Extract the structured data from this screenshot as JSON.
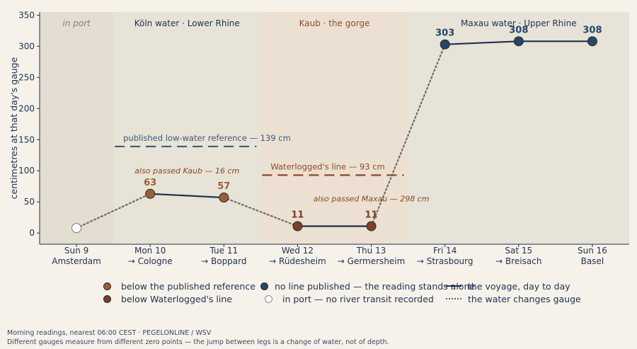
{
  "chart_data": {
    "type": "line",
    "ylabel": "centimetres at that day's gauge",
    "ylim": [
      -18,
      355
    ],
    "yticks": [
      0,
      50,
      100,
      150,
      200,
      250,
      300,
      350
    ],
    "categories": [
      {
        "day": "Sun 9",
        "place": "Amsterdam"
      },
      {
        "day": "Mon 10",
        "place": "→ Cologne"
      },
      {
        "day": "Tue 11",
        "place": "→ Boppard"
      },
      {
        "day": "Wed 12",
        "place": "→ Rüdesheim"
      },
      {
        "day": "Thu 13",
        "place": "→ Germersheim"
      },
      {
        "day": "Fri 14",
        "place": "→ Strasbourg"
      },
      {
        "day": "Sat 15",
        "place": "→ Breisach"
      },
      {
        "day": "Sun 16",
        "place": "Basel"
      }
    ],
    "points": [
      {
        "value": 8,
        "category": "port",
        "label": ""
      },
      {
        "value": 63,
        "category": "below_reference",
        "label": "63"
      },
      {
        "value": 57,
        "category": "below_reference",
        "label": "57"
      },
      {
        "value": 11,
        "category": "below_waterlogged",
        "label": "11"
      },
      {
        "value": 11,
        "category": "below_waterlogged",
        "label": "11"
      },
      {
        "value": 303,
        "category": "no_line",
        "label": "303"
      },
      {
        "value": 308,
        "category": "no_line",
        "label": "308"
      },
      {
        "value": 308,
        "category": "no_line",
        "label": "308"
      }
    ],
    "connectors": [
      {
        "from": 0,
        "to": 1,
        "style": "gauge_change"
      },
      {
        "from": 1,
        "to": 2,
        "style": "voyage"
      },
      {
        "from": 2,
        "to": 3,
        "style": "gauge_change"
      },
      {
        "from": 3,
        "to": 4,
        "style": "voyage"
      },
      {
        "from": 4,
        "to": 5,
        "style": "gauge_change"
      },
      {
        "from": 5,
        "to": 6,
        "style": "voyage"
      },
      {
        "from": 6,
        "to": 7,
        "style": "voyage"
      }
    ],
    "regions": [
      {
        "label": "in port",
        "from": -0.5,
        "to": 0.5,
        "color": "#e4ddd1",
        "text_color": "#8a7f72",
        "italic": true
      },
      {
        "label": "Köln water · Lower Rhine",
        "from": 0.5,
        "to": 2.5,
        "color": "#e7e3d6",
        "text_color": "#1f3150",
        "italic": false
      },
      {
        "label": "Kaub · the gorge",
        "from": 2.5,
        "to": 4.5,
        "color": "#ece0d2",
        "text_color": "#8a4f2a",
        "italic": false
      },
      {
        "label": "Maxau water · Upper Rhine",
        "from": 4.5,
        "to": 7.5,
        "color": "#e7e3d8",
        "text_color": "#1f3150",
        "italic": false
      }
    ],
    "reference_lines": [
      {
        "label": "published low-water reference — 139 cm",
        "value": 139,
        "from": 0.5,
        "to": 2.5,
        "color": "#3e5a7c",
        "text_color": "#3e5a7c"
      },
      {
        "label": "Waterlogged's line — 93 cm",
        "value": 93,
        "from": 2.5,
        "to": 4.5,
        "color": "#8a4a22",
        "text_color": "#8a4a22"
      }
    ],
    "annotations": [
      {
        "text": "also passed Kaub — 16 cm",
        "x": 1.5,
        "y": 96
      },
      {
        "text": "also passed Maxau — 298 cm",
        "x": 4.0,
        "y": 51
      }
    ],
    "colors": {
      "below_reference": "#9a5f36",
      "below_waterlogged": "#7a4028",
      "no_line": "#234669",
      "port": "#ffffff",
      "voyage": "#1f3150",
      "gauge_change": "#6b6b6b",
      "axis": "#1f3150"
    }
  },
  "legend": {
    "items": [
      {
        "label": "below the published reference",
        "swatch": "below_reference"
      },
      {
        "label": "no line published — the reading stands alone",
        "swatch": "no_line"
      },
      {
        "label": "the voyage, day to day",
        "swatch": "voyage"
      },
      {
        "label": "below Waterlogged's line",
        "swatch": "below_waterlogged"
      },
      {
        "label": "in port — no river transit recorded",
        "swatch": "port"
      },
      {
        "label": "the water changes gauge",
        "swatch": "gauge_change"
      }
    ]
  },
  "footer": {
    "line1": "Morning readings, nearest 06:00 CEST · PEGELONLINE / WSV",
    "line2": "Different gauges measure from different zero points — the jump between legs is a change of water, not of depth."
  }
}
